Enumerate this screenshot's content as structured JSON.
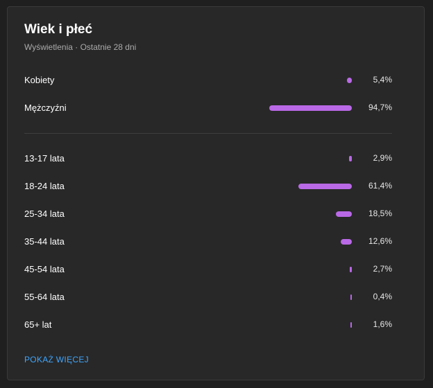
{
  "card": {
    "title": "Wiek i płeć",
    "subtitle": "Wyświetlenia · Ostatnie 28 dni"
  },
  "gender": [
    {
      "label": "Kobiety",
      "value": "5,4%",
      "percent": 5.4
    },
    {
      "label": "Mężczyźni",
      "value": "94,7%",
      "percent": 94.7
    }
  ],
  "age": [
    {
      "label": "13-17 lata",
      "value": "2,9%",
      "percent": 2.9
    },
    {
      "label": "18-24 lata",
      "value": "61,4%",
      "percent": 61.4
    },
    {
      "label": "25-34 lata",
      "value": "18,5%",
      "percent": 18.5
    },
    {
      "label": "35-44 lata",
      "value": "12,6%",
      "percent": 12.6
    },
    {
      "label": "45-54 lata",
      "value": "2,7%",
      "percent": 2.7
    },
    {
      "label": "55-64 lata",
      "value": "0,4%",
      "percent": 0.4
    },
    {
      "label": "65+ lat",
      "value": "1,6%",
      "percent": 1.6
    }
  ],
  "show_more_label": "POKAŻ WIĘCEJ",
  "colors": {
    "bar": "#b969e6",
    "link": "#3ea6ff",
    "card_bg": "#282828",
    "page_bg": "#1f1f1f"
  }
}
